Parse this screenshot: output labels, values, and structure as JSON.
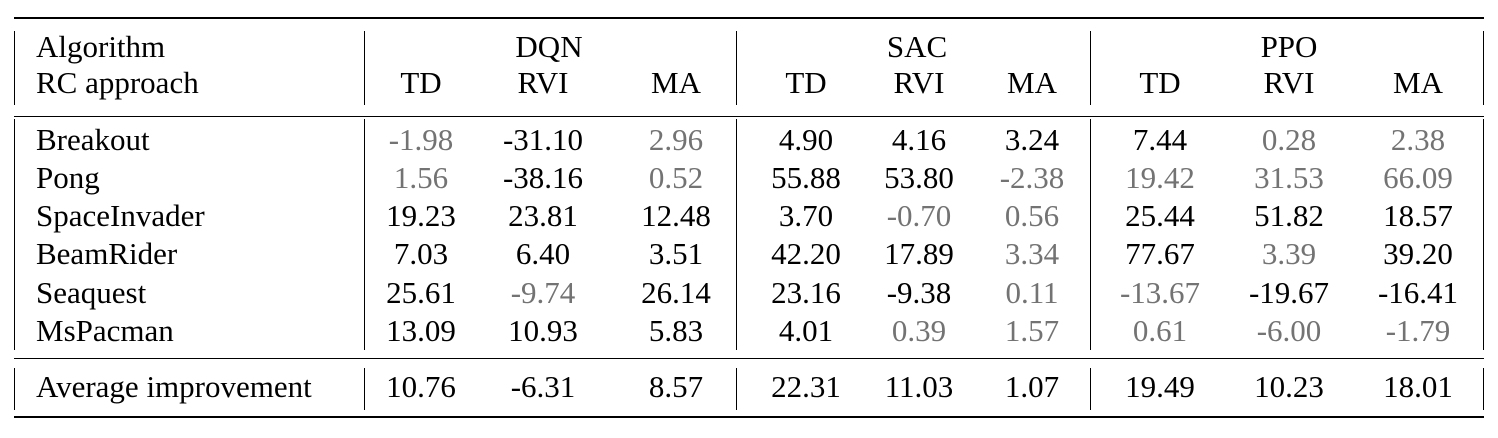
{
  "header": {
    "algorithm_label": "Algorithm",
    "rc_label": "RC approach",
    "algorithms": [
      "DQN",
      "SAC",
      "PPO"
    ],
    "approaches": [
      "TD",
      "RVI",
      "MA"
    ]
  },
  "rows": [
    {
      "name": "Breakout",
      "values": [
        "-1.98",
        "-31.10",
        "2.96",
        "4.90",
        "4.16",
        "3.24",
        "7.44",
        "0.28",
        "2.38"
      ],
      "gray": [
        true,
        false,
        true,
        false,
        false,
        false,
        false,
        true,
        true
      ]
    },
    {
      "name": "Pong",
      "values": [
        "1.56",
        "-38.16",
        "0.52",
        "55.88",
        "53.80",
        "-2.38",
        "19.42",
        "31.53",
        "66.09"
      ],
      "gray": [
        true,
        false,
        true,
        false,
        false,
        true,
        true,
        true,
        true
      ]
    },
    {
      "name": "SpaceInvader",
      "values": [
        "19.23",
        "23.81",
        "12.48",
        "3.70",
        "-0.70",
        "0.56",
        "25.44",
        "51.82",
        "18.57"
      ],
      "gray": [
        false,
        false,
        false,
        false,
        true,
        true,
        false,
        false,
        false
      ]
    },
    {
      "name": "BeamRider",
      "values": [
        "7.03",
        "6.40",
        "3.51",
        "42.20",
        "17.89",
        "3.34",
        "77.67",
        "3.39",
        "39.20"
      ],
      "gray": [
        false,
        false,
        false,
        false,
        false,
        true,
        false,
        true,
        false
      ]
    },
    {
      "name": "Seaquest",
      "values": [
        "25.61",
        "-9.74",
        "26.14",
        "23.16",
        "-9.38",
        "0.11",
        "-13.67",
        "-19.67",
        "-16.41"
      ],
      "gray": [
        false,
        true,
        false,
        false,
        false,
        true,
        true,
        false,
        false
      ]
    },
    {
      "name": "MsPacman",
      "values": [
        "13.09",
        "10.93",
        "5.83",
        "4.01",
        "0.39",
        "1.57",
        "0.61",
        "-6.00",
        "-1.79"
      ],
      "gray": [
        false,
        false,
        false,
        false,
        true,
        true,
        true,
        true,
        true
      ]
    }
  ],
  "average": {
    "name": "Average improvement",
    "values": [
      "10.76",
      "-6.31",
      "8.57",
      "22.31",
      "11.03",
      "1.07",
      "19.49",
      "10.23",
      "18.01"
    ]
  }
}
